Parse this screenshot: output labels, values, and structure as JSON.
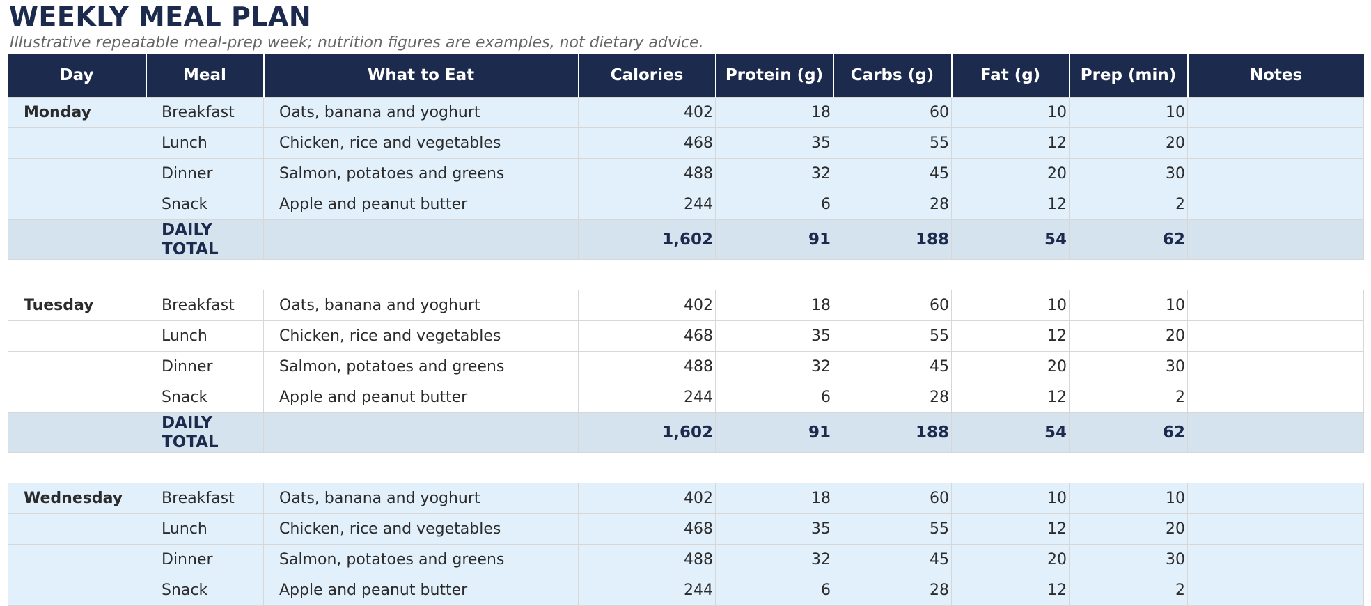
{
  "title": "WEEKLY MEAL PLAN",
  "subtitle": "Illustrative repeatable meal-prep week; nutrition figures are examples, not dietary advice.",
  "columns": [
    "Day",
    "Meal",
    "What to Eat",
    "Calories",
    "Protein (g)",
    "Carbs (g)",
    "Fat (g)",
    "Prep (min)",
    "Notes"
  ],
  "days": [
    {
      "name": "Monday",
      "meals": [
        {
          "meal": "Breakfast",
          "food": "Oats, banana and yoghurt",
          "calories": "402",
          "protein": "18",
          "carbs": "60",
          "fat": "10",
          "prep": "10",
          "notes": ""
        },
        {
          "meal": "Lunch",
          "food": "Chicken, rice and vegetables",
          "calories": "468",
          "protein": "35",
          "carbs": "55",
          "fat": "12",
          "prep": "20",
          "notes": ""
        },
        {
          "meal": "Dinner",
          "food": "Salmon, potatoes and greens",
          "calories": "488",
          "protein": "32",
          "carbs": "45",
          "fat": "20",
          "prep": "30",
          "notes": ""
        },
        {
          "meal": "Snack",
          "food": "Apple and peanut butter",
          "calories": "244",
          "protein": "6",
          "carbs": "28",
          "fat": "12",
          "prep": "2",
          "notes": ""
        }
      ],
      "total": {
        "label": "DAILY TOTAL",
        "calories": "1,602",
        "protein": "91",
        "carbs": "188",
        "fat": "54",
        "prep": "62"
      }
    },
    {
      "name": "Tuesday",
      "meals": [
        {
          "meal": "Breakfast",
          "food": "Oats, banana and yoghurt",
          "calories": "402",
          "protein": "18",
          "carbs": "60",
          "fat": "10",
          "prep": "10",
          "notes": ""
        },
        {
          "meal": "Lunch",
          "food": "Chicken, rice and vegetables",
          "calories": "468",
          "protein": "35",
          "carbs": "55",
          "fat": "12",
          "prep": "20",
          "notes": ""
        },
        {
          "meal": "Dinner",
          "food": "Salmon, potatoes and greens",
          "calories": "488",
          "protein": "32",
          "carbs": "45",
          "fat": "20",
          "prep": "30",
          "notes": ""
        },
        {
          "meal": "Snack",
          "food": "Apple and peanut butter",
          "calories": "244",
          "protein": "6",
          "carbs": "28",
          "fat": "12",
          "prep": "2",
          "notes": ""
        }
      ],
      "total": {
        "label": "DAILY TOTAL",
        "calories": "1,602",
        "protein": "91",
        "carbs": "188",
        "fat": "54",
        "prep": "62"
      }
    },
    {
      "name": "Wednesday",
      "meals": [
        {
          "meal": "Breakfast",
          "food": "Oats, banana and yoghurt",
          "calories": "402",
          "protein": "18",
          "carbs": "60",
          "fat": "10",
          "prep": "10",
          "notes": ""
        },
        {
          "meal": "Lunch",
          "food": "Chicken, rice and vegetables",
          "calories": "468",
          "protein": "35",
          "carbs": "55",
          "fat": "12",
          "prep": "20",
          "notes": ""
        },
        {
          "meal": "Dinner",
          "food": "Salmon, potatoes and greens",
          "calories": "488",
          "protein": "32",
          "carbs": "45",
          "fat": "20",
          "prep": "30",
          "notes": ""
        },
        {
          "meal": "Snack",
          "food": "Apple and peanut butter",
          "calories": "244",
          "protein": "6",
          "carbs": "28",
          "fat": "12",
          "prep": "2",
          "notes": ""
        }
      ]
    }
  ],
  "colors": {
    "header_bg": "#1c2a4d",
    "title": "#1c2a4d",
    "row_shade": "#e2f0fb",
    "total_bg": "#d5e3ef"
  }
}
